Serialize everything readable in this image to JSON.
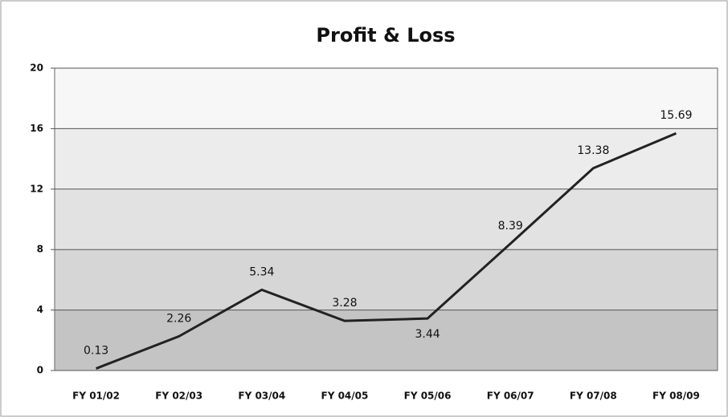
{
  "chart_data": {
    "type": "line",
    "title": "Profit & Loss",
    "categories": [
      "FY 01/02",
      "FY 02/03",
      "FY 03/04",
      "FY 04/05",
      "FY 05/06",
      "FY 06/07",
      "FY 07/08",
      "FY 08/09"
    ],
    "series": [
      {
        "name": "Profit & Loss",
        "color": "#222222",
        "values": [
          0.13,
          2.26,
          5.34,
          3.28,
          3.44,
          8.39,
          13.38,
          15.69
        ]
      }
    ],
    "ylim": [
      0,
      20
    ],
    "yticks": [
      0,
      4,
      8,
      12,
      16,
      20
    ],
    "grid": true
  }
}
